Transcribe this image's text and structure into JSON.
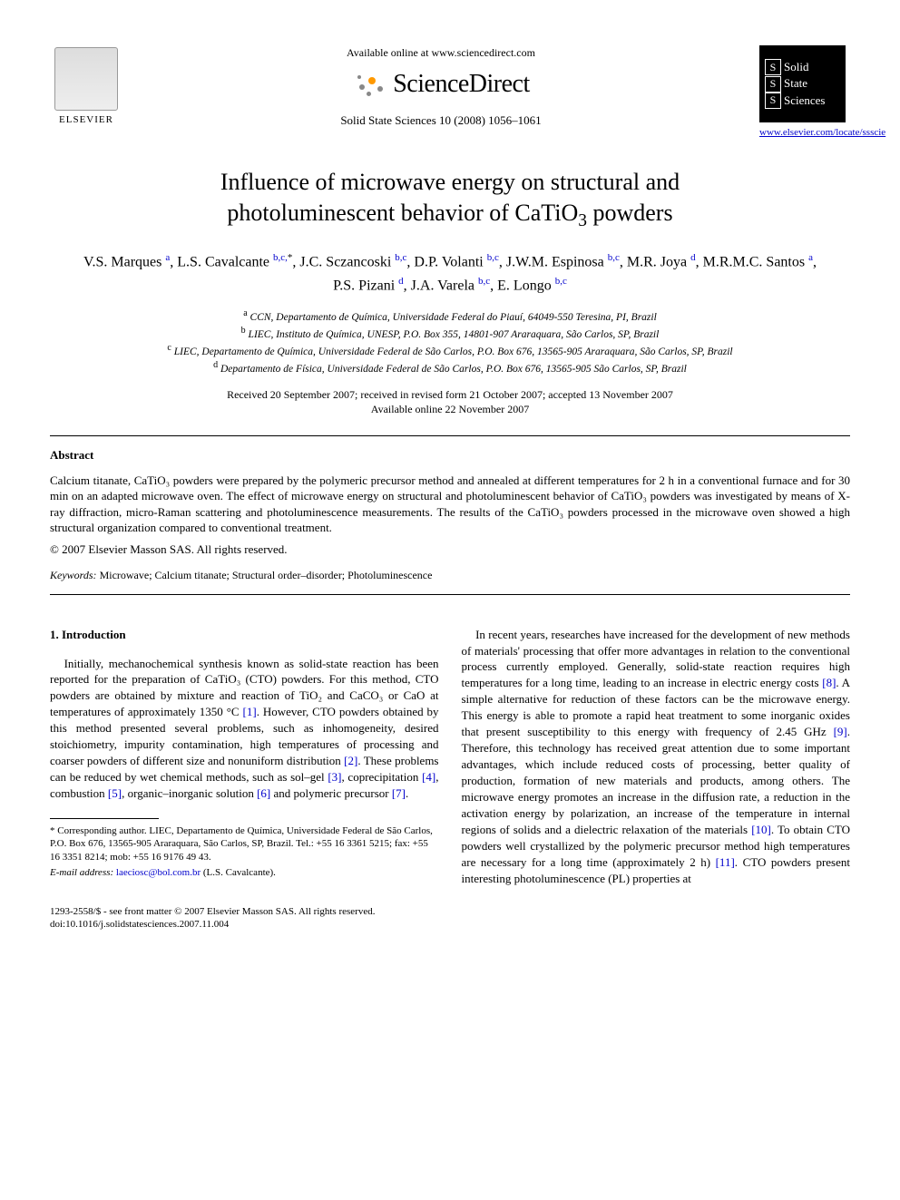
{
  "header": {
    "available_text": "Available online at www.sciencedirect.com",
    "brand": "ScienceDirect",
    "journal_ref": "Solid State Sciences 10 (2008) 1056–1061",
    "elsevier_label": "ELSEVIER",
    "journal_box": {
      "l1": "Solid",
      "l2": "State",
      "l3": "Sciences"
    },
    "journal_url": "www.elsevier.com/locate/ssscie"
  },
  "title_line1": "Influence of microwave energy on structural and",
  "title_line2": "photoluminescent behavior of CaTiO",
  "title_sub": "3",
  "title_tail": " powders",
  "authors_html": "V.S. Marques <sup>a</sup>, L.S. Cavalcante <sup>b,c,</sup><sup class='ast'>*</sup>, J.C. Sczancoski <sup>b,c</sup>, D.P. Volanti <sup>b,c</sup>, J.W.M. Espinosa <sup>b,c</sup>, M.R. Joya <sup>d</sup>, M.R.M.C. Santos <sup>a</sup>, P.S. Pizani <sup>d</sup>, J.A. Varela <sup>b,c</sup>, E. Longo <sup>b,c</sup>",
  "affiliations": {
    "a": "CCN, Departamento de Química, Universidade Federal do Piauí, 64049-550 Teresina, PI, Brazil",
    "b": "LIEC, Instituto de Química, UNESP, P.O. Box 355, 14801-907 Araraquara, São Carlos, SP, Brazil",
    "c": "LIEC, Departamento de Química, Universidade Federal de São Carlos, P.O. Box 676, 13565-905 Araraquara, São Carlos, SP, Brazil",
    "d": "Departamento de Física, Universidade Federal de São Carlos, P.O. Box 676, 13565-905 São Carlos, SP, Brazil"
  },
  "dates": {
    "received": "Received 20 September 2007; received in revised form 21 October 2007; accepted 13 November 2007",
    "online": "Available online 22 November 2007"
  },
  "abstract": {
    "heading": "Abstract",
    "text": "Calcium titanate, CaTiO₃ powders were prepared by the polymeric precursor method and annealed at different temperatures for 2 h in a conventional furnace and for 30 min on an adapted microwave oven. The effect of microwave energy on structural and photoluminescent behavior of CaTiO₃ powders was investigated by means of X-ray diffraction, micro-Raman scattering and photoluminescence measurements. The results of the CaTiO₃ powders processed in the microwave oven showed a high structural organization compared to conventional treatment.",
    "copyright": "© 2007 Elsevier Masson SAS. All rights reserved."
  },
  "keywords": {
    "label": "Keywords:",
    "text": " Microwave; Calcium titanate; Structural order–disorder; Photoluminescence"
  },
  "section1": {
    "heading": "1. Introduction",
    "para1_a": "Initially, mechanochemical synthesis known as solid-state reaction has been reported for the preparation of CaTiO₃ (CTO) powders. For this method, CTO powders are obtained by mixture and reaction of TiO₂ and CaCO₃ or CaO at temperatures of approximately 1350 °C ",
    "ref1": "[1]",
    "para1_b": ". However, CTO powders obtained by this method presented several problems, such as inhomogeneity, desired stoichiometry, impurity contamination, high temperatures of processing and coarser powders of different size and nonuniform distribution ",
    "ref2": "[2]",
    "para1_c": ". These problems can be reduced by wet chemical methods, such as sol–gel ",
    "ref3": "[3]",
    "para1_d": ", coprecipitation ",
    "ref4": "[4]",
    "para1_e": ", combustion ",
    "ref5": "[5]",
    "para1_f": ", organic–inorganic solution ",
    "ref6": "[6]",
    "para1_g": " and polymeric precursor ",
    "ref7": "[7]",
    "para1_h": "."
  },
  "col2": {
    "para_a": "In recent years, researches have increased for the development of new methods of materials' processing that offer more advantages in relation to the conventional process currently employed. Generally, solid-state reaction requires high temperatures for a long time, leading to an increase in electric energy costs ",
    "ref8": "[8]",
    "para_b": ". A simple alternative for reduction of these factors can be the microwave energy. This energy is able to promote a rapid heat treatment to some inorganic oxides that present susceptibility to this energy with frequency of 2.45 GHz ",
    "ref9": "[9]",
    "para_c": ". Therefore, this technology has received great attention due to some important advantages, which include reduced costs of processing, better quality of production, formation of new materials and products, among others. The microwave energy promotes an increase in the diffusion rate, a reduction in the activation energy by polarization, an increase of the temperature in internal regions of solids and a dielectric relaxation of the materials ",
    "ref10": "[10]",
    "para_d": ". To obtain CTO powders well crystallized by the polymeric precursor method high temperatures are necessary for a long time (approximately 2 h) ",
    "ref11": "[11]",
    "para_e": ". CTO powders present interesting photoluminescence (PL) properties at"
  },
  "footnote": {
    "corr": "* Corresponding author. LIEC, Departamento de Química, Universidade Federal de São Carlos, P.O. Box 676, 13565-905 Araraquara, São Carlos, SP, Brazil. Tel.: +55 16 3361 5215; fax: +55 16 3351 8214; mob: +55 16 9176 49 43.",
    "email_label": "E-mail address:",
    "email": "laeciosc@bol.com.br",
    "email_name": " (L.S. Cavalcante)."
  },
  "footer": {
    "line1": "1293-2558/$ - see front matter © 2007 Elsevier Masson SAS. All rights reserved.",
    "line2": "doi:10.1016/j.solidstatesciences.2007.11.004"
  }
}
